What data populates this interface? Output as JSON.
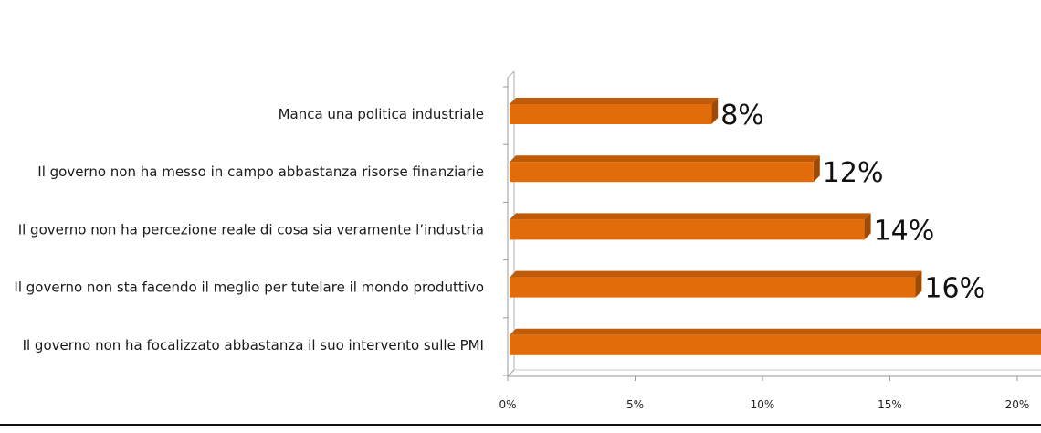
{
  "chart_data": {
    "type": "bar",
    "orientation": "horizontal",
    "categories": [
      "Manca una politica industriale",
      "Il governo non ha messo in campo abbastanza risorse finanziarie",
      "Il governo non ha percezione reale di cosa sia veramente l’industria",
      "Il governo non sta facendo il meglio per tutelare il mondo produttivo",
      "Il governo non ha focalizzato abbastanza il suo intervento sulle PMI"
    ],
    "values": [
      8,
      12,
      14,
      16,
      21
    ],
    "value_labels": [
      "8%",
      "12%",
      "14%",
      "16%",
      ""
    ],
    "x_ticks": [
      "0%",
      "5%",
      "10%",
      "15%",
      "20%"
    ],
    "xlim": [
      0,
      21
    ],
    "title": "",
    "xlabel": "",
    "ylabel": "",
    "grid": false,
    "legend": "none",
    "bar_color": "#e36c0a",
    "bar_top_color": "#c15a06",
    "bar_side_color": "#9c4a07"
  }
}
